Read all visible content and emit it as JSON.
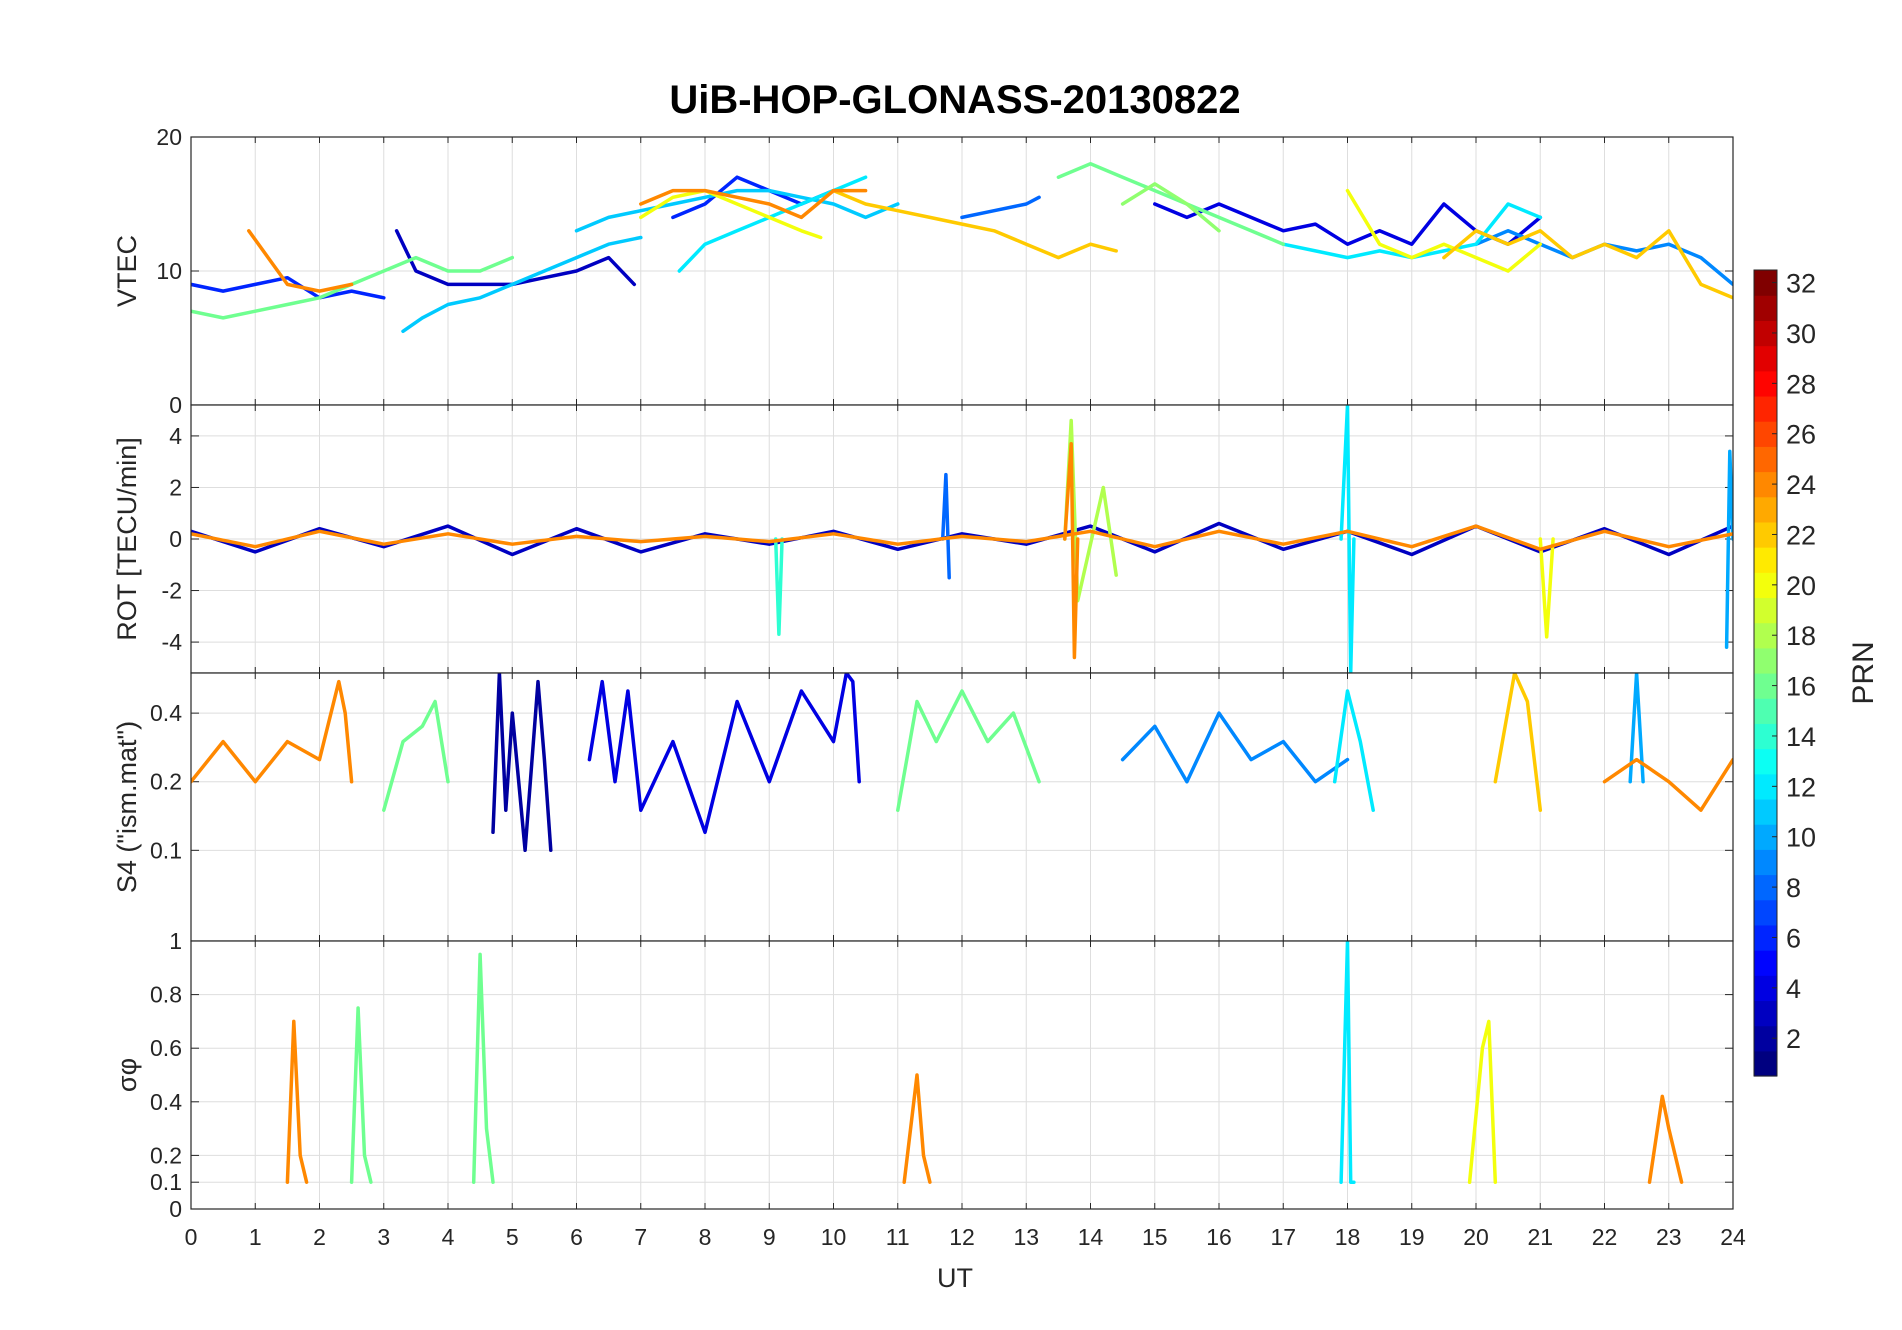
{
  "chart_data": {
    "type": "line",
    "title": "UiB-HOP-GLONASS-20130822",
    "xlabel": "UT",
    "xlim": [
      0,
      24
    ],
    "xticks": [
      "0",
      "1",
      "2",
      "3",
      "4",
      "5",
      "6",
      "7",
      "8",
      "9",
      "10",
      "11",
      "12",
      "13",
      "14",
      "15",
      "16",
      "17",
      "18",
      "19",
      "20",
      "21",
      "22",
      "23",
      "24"
    ],
    "grid": true,
    "colormap": "jet",
    "colorbar": {
      "label": "PRN",
      "range": [
        1,
        32
      ],
      "ticks": [
        "2",
        "4",
        "6",
        "8",
        "10",
        "12",
        "14",
        "16",
        "18",
        "20",
        "22",
        "24",
        "26",
        "28",
        "30",
        "32"
      ]
    },
    "panels": [
      {
        "ylabel": "VTEC",
        "ylim": [
          0,
          20
        ],
        "yticks": [
          "0",
          "10",
          "20"
        ],
        "series": [
          {
            "prn": 3,
            "x": [
              3.2,
              3.5,
              4,
              4.5,
              5,
              5.5,
              6,
              6.5,
              6.9
            ],
            "y": [
              13,
              10,
              9,
              9,
              9,
              9.5,
              10,
              11,
              9
            ]
          },
          {
            "prn": 6,
            "x": [
              0,
              0.5,
              1,
              1.5,
              2,
              2.5,
              3
            ],
            "y": [
              9,
              8.5,
              9,
              9.5,
              8,
              8.5,
              8
            ]
          },
          {
            "prn": 6,
            "x": [
              7.5,
              8,
              8.5,
              9,
              9.5,
              10
            ],
            "y": [
              14,
              15,
              17,
              16,
              15,
              16
            ]
          },
          {
            "prn": 4,
            "x": [
              15,
              15.5,
              16,
              16.5,
              17,
              17.5,
              18,
              18.5,
              19,
              19.5,
              20,
              20.5,
              21
            ],
            "y": [
              15,
              14,
              15,
              14,
              13,
              13.5,
              12,
              13,
              12,
              15,
              13,
              12,
              14
            ]
          },
          {
            "prn": 8,
            "x": [
              12,
              12.5,
              13,
              13.2
            ],
            "y": [
              14,
              14.5,
              15,
              15.5
            ]
          },
          {
            "prn": 9,
            "x": [
              20,
              20.5,
              21,
              21.5,
              22,
              22.5,
              23,
              23.5,
              24
            ],
            "y": [
              12,
              13,
              12,
              11,
              12,
              11.5,
              12,
              11,
              9
            ]
          },
          {
            "prn": 11,
            "x": [
              3.3,
              3.6,
              4,
              4.5,
              5,
              5.5,
              6,
              6.5,
              7
            ],
            "y": [
              5.5,
              6.5,
              7.5,
              8,
              9,
              10,
              11,
              12,
              12.5
            ]
          },
          {
            "prn": 11,
            "x": [
              6,
              6.5,
              7,
              7.5,
              8,
              8.5,
              9,
              9.5,
              10,
              10.5,
              11
            ],
            "y": [
              13,
              14,
              14.5,
              15,
              15.5,
              16,
              16,
              15.5,
              15,
              14,
              15
            ]
          },
          {
            "prn": 12,
            "x": [
              7.6,
              8,
              8.5,
              9,
              9.5,
              10,
              10.5
            ],
            "y": [
              10,
              12,
              13,
              14,
              15,
              16,
              17
            ]
          },
          {
            "prn": 12,
            "x": [
              17,
              17.5,
              18,
              18.5,
              19,
              19.5,
              20,
              20.5,
              21
            ],
            "y": [
              12,
              11.5,
              11,
              11.5,
              11,
              11.5,
              12,
              15,
              14
            ]
          },
          {
            "prn": 16,
            "x": [
              0,
              0.5,
              1,
              1.5,
              2,
              2.5,
              3,
              3.5,
              4,
              4.5,
              5
            ],
            "y": [
              7,
              6.5,
              7,
              7.5,
              8,
              9,
              10,
              11,
              10,
              10,
              11
            ]
          },
          {
            "prn": 16,
            "x": [
              13.5,
              14,
              14.5,
              15,
              15.5,
              16,
              16.5,
              17
            ],
            "y": [
              17,
              18,
              17,
              16,
              15,
              14,
              13,
              12
            ]
          },
          {
            "prn": 17,
            "x": [
              14.5,
              15,
              15.5,
              16
            ],
            "y": [
              15,
              16.5,
              15,
              13
            ]
          },
          {
            "prn": 20,
            "x": [
              7,
              7.5,
              8,
              8.5,
              9,
              9.5,
              9.8
            ],
            "y": [
              14,
              15.5,
              16,
              15,
              14,
              13,
              12.5
            ]
          },
          {
            "prn": 20,
            "x": [
              18,
              18.5,
              19,
              19.5,
              20,
              20.5,
              21
            ],
            "y": [
              16,
              12,
              11,
              12,
              11,
              10,
              12
            ]
          },
          {
            "prn": 22,
            "x": [
              10,
              10.5,
              11,
              11.5,
              12,
              12.5,
              13,
              13.5,
              14,
              14.4
            ],
            "y": [
              16,
              15,
              14.5,
              14,
              13.5,
              13,
              12,
              11,
              12,
              11.5
            ]
          },
          {
            "prn": 22,
            "x": [
              19.5,
              20,
              20.5,
              21,
              21.5,
              22,
              22.5,
              23,
              23.5,
              24
            ],
            "y": [
              11,
              13,
              12,
              13,
              11,
              12,
              11,
              13,
              9,
              8
            ]
          },
          {
            "prn": 24,
            "x": [
              0.9,
              1.2,
              1.5,
              2,
              2.5
            ],
            "y": [
              13,
              11,
              9,
              8.5,
              9
            ]
          },
          {
            "prn": 24,
            "x": [
              7,
              7.5,
              8,
              8.5,
              9,
              9.5,
              10,
              10.5
            ],
            "y": [
              15,
              16,
              16,
              15.5,
              15,
              14,
              16,
              16
            ]
          }
        ]
      },
      {
        "ylabel": "ROT [TECU/min]",
        "ylim": [
          -5.2,
          5.2
        ],
        "yticks": [
          "-4",
          "-2",
          "0",
          "2",
          "4"
        ],
        "series": [
          {
            "prn": 3,
            "x": [
              0,
              1,
              2,
              3,
              4,
              5,
              6,
              7,
              8,
              9,
              10,
              11,
              12,
              13,
              14,
              15,
              16,
              17,
              18,
              19,
              20,
              21,
              22,
              23,
              24
            ],
            "y": [
              0.3,
              -0.5,
              0.4,
              -0.3,
              0.5,
              -0.6,
              0.4,
              -0.5,
              0.2,
              -0.2,
              0.3,
              -0.4,
              0.2,
              -0.2,
              0.5,
              -0.5,
              0.6,
              -0.4,
              0.3,
              -0.6,
              0.5,
              -0.5,
              0.4,
              -0.6,
              0.5
            ]
          },
          {
            "prn": 8,
            "x": [
              11.7,
              11.75,
              11.8
            ],
            "y": [
              0,
              2.5,
              -1.5
            ]
          },
          {
            "prn": 10,
            "x": [
              23.9,
              23.95,
              24
            ],
            "y": [
              -4.2,
              3.4,
              0
            ]
          },
          {
            "prn": 12,
            "x": [
              17.9,
              18,
              18.05,
              18.1
            ],
            "y": [
              0,
              5.2,
              -5.2,
              0
            ]
          },
          {
            "prn": 14,
            "x": [
              9.1,
              9.15,
              9.2
            ],
            "y": [
              0,
              -3.7,
              0
            ]
          },
          {
            "prn": 18,
            "x": [
              13.6,
              13.7,
              13.8,
              14.2,
              14.4
            ],
            "y": [
              0,
              4.6,
              -2.4,
              2,
              -1.4
            ]
          },
          {
            "prn": 20,
            "x": [
              21,
              21.1,
              21.2
            ],
            "y": [
              0,
              -3.8,
              0
            ]
          },
          {
            "prn": 24,
            "x": [
              13.6,
              13.7,
              13.75,
              13.8
            ],
            "y": [
              0,
              3.7,
              -4.6,
              0
            ]
          },
          {
            "prn": 24,
            "x": [
              0,
              1,
              2,
              3,
              4,
              5,
              6,
              7,
              8,
              9,
              10,
              11,
              12,
              13,
              14,
              15,
              16,
              17,
              18,
              19,
              20,
              21,
              22,
              23,
              24
            ],
            "y": [
              0.2,
              -0.3,
              0.3,
              -0.2,
              0.2,
              -0.2,
              0.1,
              -0.1,
              0.1,
              -0.1,
              0.2,
              -0.2,
              0.1,
              -0.1,
              0.3,
              -0.3,
              0.3,
              -0.2,
              0.3,
              -0.3,
              0.5,
              -0.4,
              0.3,
              -0.3,
              0.2
            ]
          }
        ]
      },
      {
        "ylabel": "S4 (\"ism.mat\")",
        "ylim": [
          0.04,
          0.6
        ],
        "yticks": [
          "0.1",
          "0.2",
          "0.4"
        ],
        "scale": "log",
        "series": [
          {
            "prn": 2,
            "x": [
              4.7,
              4.8,
              4.9,
              5,
              5.2,
              5.4,
              5.5,
              5.6
            ],
            "y": [
              0.12,
              0.6,
              0.15,
              0.4,
              0.1,
              0.55,
              0.25,
              0.1
            ]
          },
          {
            "prn": 4,
            "x": [
              6.2,
              6.4,
              6.6,
              6.8,
              7,
              7.5,
              8,
              8.5,
              9,
              9.5,
              10,
              10.2,
              10.3,
              10.4
            ],
            "y": [
              0.25,
              0.55,
              0.2,
              0.5,
              0.15,
              0.3,
              0.12,
              0.45,
              0.2,
              0.5,
              0.3,
              0.6,
              0.55,
              0.2
            ]
          },
          {
            "prn": 9,
            "x": [
              14.5,
              15,
              15.5,
              16,
              16.5,
              17,
              17.5,
              18
            ],
            "y": [
              0.25,
              0.35,
              0.2,
              0.4,
              0.25,
              0.3,
              0.2,
              0.25
            ]
          },
          {
            "prn": 10,
            "x": [
              22.4,
              22.5,
              22.6
            ],
            "y": [
              0.2,
              0.6,
              0.2
            ]
          },
          {
            "prn": 12,
            "x": [
              17.8,
              18,
              18.2,
              18.4
            ],
            "y": [
              0.2,
              0.5,
              0.3,
              0.15
            ]
          },
          {
            "prn": 16,
            "x": [
              3,
              3.3,
              3.6,
              3.8,
              4
            ],
            "y": [
              0.15,
              0.3,
              0.35,
              0.45,
              0.2
            ]
          },
          {
            "prn": 16,
            "x": [
              11,
              11.3,
              11.6,
              12,
              12.4,
              12.8,
              13.2
            ],
            "y": [
              0.15,
              0.45,
              0.3,
              0.5,
              0.3,
              0.4,
              0.2
            ]
          },
          {
            "prn": 22,
            "x": [
              20.3,
              20.6,
              20.8,
              21
            ],
            "y": [
              0.2,
              0.6,
              0.45,
              0.15
            ]
          },
          {
            "prn": 24,
            "x": [
              0,
              0.5,
              1,
              1.5,
              2,
              2.3,
              2.4,
              2.5
            ],
            "y": [
              0.2,
              0.3,
              0.2,
              0.3,
              0.25,
              0.55,
              0.4,
              0.2
            ]
          },
          {
            "prn": 24,
            "x": [
              22,
              22.5,
              23,
              23.5,
              24
            ],
            "y": [
              0.2,
              0.25,
              0.2,
              0.15,
              0.25
            ]
          }
        ]
      },
      {
        "ylabel": "σφ",
        "ylim": [
          0,
          1
        ],
        "yticks": [
          "0",
          "0.1",
          "0.2",
          "0.4",
          "0.6",
          "0.8",
          "1"
        ],
        "series": [
          {
            "prn": 12,
            "x": [
              17.9,
              18,
              18.05,
              18.1
            ],
            "y": [
              0.1,
              1.0,
              0.1,
              0.1
            ]
          },
          {
            "prn": 16,
            "x": [
              2.5,
              2.6,
              2.7,
              2.8
            ],
            "y": [
              0.1,
              0.75,
              0.2,
              0.1
            ]
          },
          {
            "prn": 16,
            "x": [
              4.4,
              4.5,
              4.6,
              4.7
            ],
            "y": [
              0.1,
              0.95,
              0.3,
              0.1
            ]
          },
          {
            "prn": 20,
            "x": [
              19.9,
              20.1,
              20.2,
              20.3
            ],
            "y": [
              0.1,
              0.6,
              0.7,
              0.1
            ]
          },
          {
            "prn": 24,
            "x": [
              1.5,
              1.6,
              1.7,
              1.8
            ],
            "y": [
              0.1,
              0.7,
              0.2,
              0.1
            ]
          },
          {
            "prn": 24,
            "x": [
              11.1,
              11.3,
              11.4,
              11.5
            ],
            "y": [
              0.1,
              0.5,
              0.2,
              0.1
            ]
          },
          {
            "prn": 24,
            "x": [
              22.7,
              22.9,
              23,
              23.2
            ],
            "y": [
              0.1,
              0.42,
              0.3,
              0.1
            ]
          }
        ]
      }
    ]
  }
}
